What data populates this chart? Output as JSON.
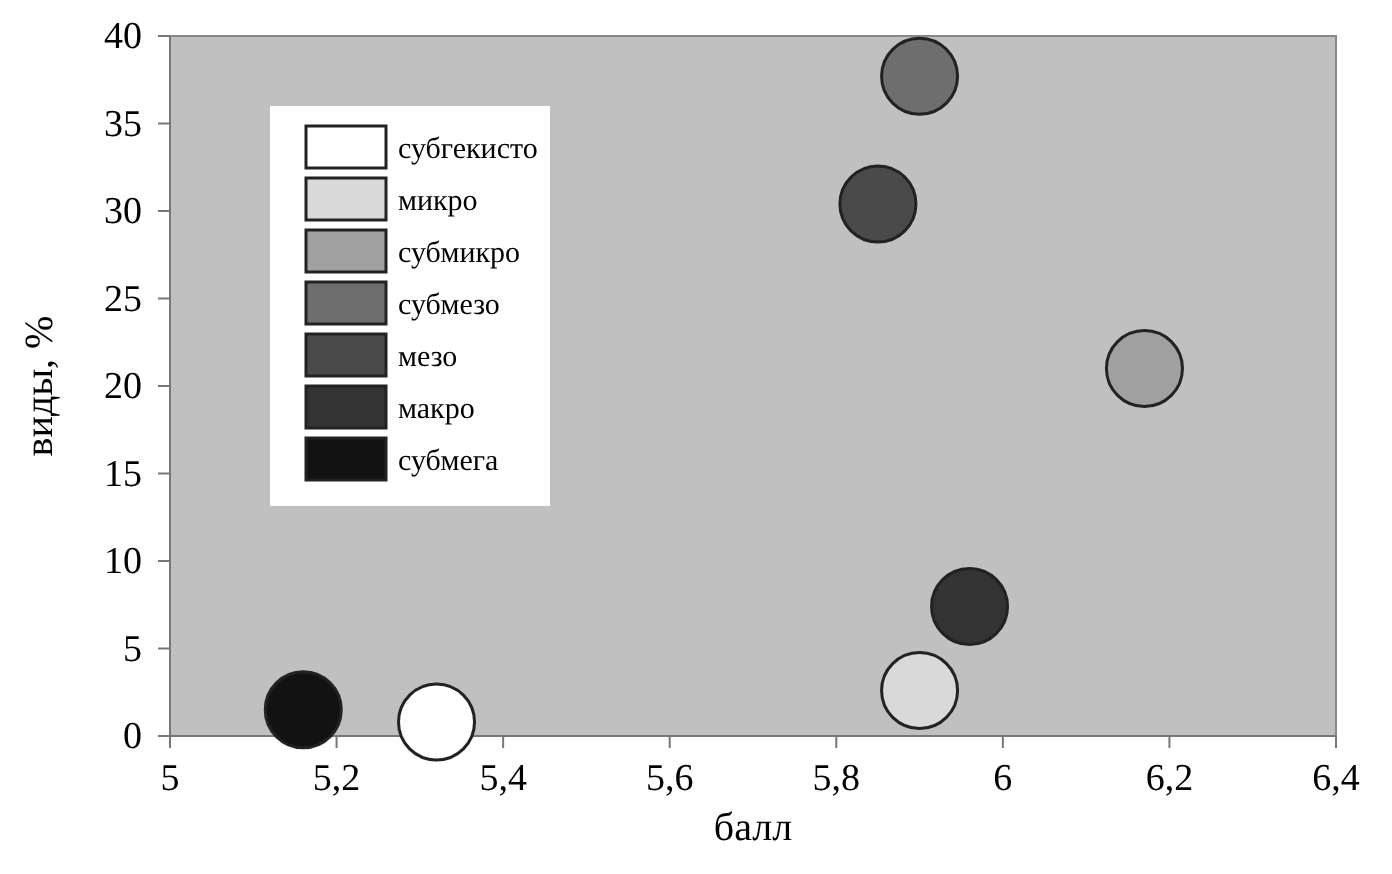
{
  "chart_data": {
    "type": "scatter",
    "xlabel": "балл",
    "ylabel": "виды, %",
    "xlim": [
      5,
      6.4
    ],
    "ylim": [
      0,
      40
    ],
    "xticks": [
      5,
      {
        "value": 5.2,
        "label": "5,2"
      },
      {
        "value": 5.4,
        "label": "5,4"
      },
      {
        "value": 5.6,
        "label": "5,6"
      },
      {
        "value": 5.8,
        "label": "5,8"
      },
      6,
      {
        "value": 6.2,
        "label": "6,2"
      },
      {
        "value": 6.4,
        "label": "6,4"
      }
    ],
    "yticks": [
      0,
      5,
      10,
      15,
      20,
      25,
      30,
      35,
      40
    ],
    "grid": false,
    "legend": "top left",
    "marker": "circle",
    "series": [
      {
        "name": "субгекисто",
        "color": "#ffffff",
        "x": [
          5.32
        ],
        "values": [
          0.8
        ]
      },
      {
        "name": "микро",
        "color": "#d9d9d9",
        "x": [
          5.9
        ],
        "values": [
          2.6
        ]
      },
      {
        "name": "субмикро",
        "color": "#a0a0a0",
        "x": [
          6.17
        ],
        "values": [
          21
        ]
      },
      {
        "name": "субмезо",
        "color": "#6e6e6e",
        "x": [
          5.9
        ],
        "values": [
          37.7
        ]
      },
      {
        "name": "мезо",
        "color": "#4a4a4a",
        "x": [
          5.85
        ],
        "values": [
          30.4
        ]
      },
      {
        "name": "макро",
        "color": "#333333",
        "x": [
          5.96
        ],
        "values": [
          7.4
        ]
      },
      {
        "name": "субмега",
        "color": "#121212",
        "x": [
          5.16
        ],
        "values": [
          1.5
        ]
      }
    ]
  }
}
